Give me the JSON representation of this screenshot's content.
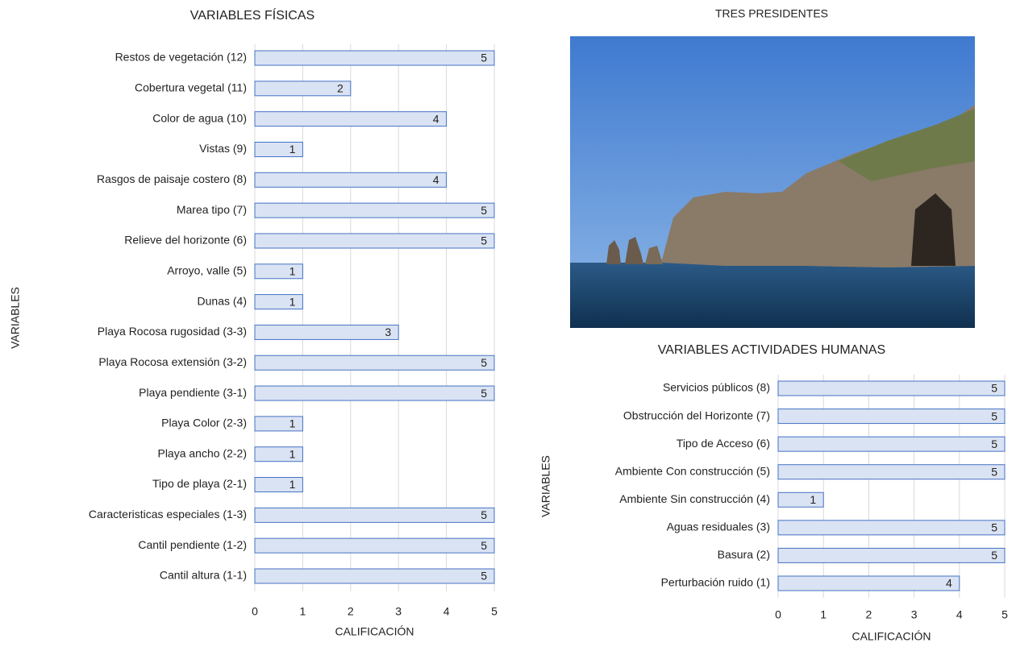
{
  "chart_data": [
    {
      "type": "bar",
      "orientation": "horizontal",
      "title": "VARIABLES FÍSICAS",
      "xlabel": "CALIFICACIÓN",
      "ylabel": "VARIABLES",
      "categories": [
        "Restos de vegetación (12)",
        "Cobertura vegetal (11)",
        "Color de agua (10)",
        "Vistas (9)",
        "Rasgos de paisaje costero (8)",
        "Marea tipo (7)",
        "Relieve del horizonte (6)",
        "Arroyo, valle (5)",
        "Dunas (4)",
        "Playa Rocosa rugosidad (3-3)",
        "Playa Rocosa extensión (3-2)",
        "Playa pendiente (3-1)",
        "Playa Color (2-3)",
        "Playa ancho (2-2)",
        "Tipo de playa (2-1)",
        "Caracteristicas especiales (1-3)",
        "Cantil pendiente (1-2)",
        "Cantil altura (1-1)"
      ],
      "values": [
        5,
        2,
        4,
        1,
        4,
        5,
        5,
        1,
        1,
        3,
        5,
        5,
        1,
        1,
        1,
        5,
        5,
        5
      ],
      "color": "#dae3f3",
      "edge_color": "#4472c4",
      "xlim": [
        0,
        5
      ],
      "xticks": [
        0,
        1,
        2,
        3,
        4,
        5
      ],
      "grid": true
    },
    {
      "type": "bar",
      "orientation": "horizontal",
      "title": "VARIABLES ACTIVIDADES HUMANAS",
      "xlabel": "CALIFICACIÓN",
      "ylabel": "VARIABLES",
      "categories": [
        "Servicios públicos (8)",
        "Obstrucción del Horizonte (7)",
        "Tipo de Acceso (6)",
        "Ambiente Con construcción (5)",
        "Ambiente Sin construcción (4)",
        "Aguas residuales (3)",
        "Basura (2)",
        "Perturbación ruido (1)"
      ],
      "values": [
        5,
        5,
        5,
        5,
        1,
        5,
        5,
        4
      ],
      "color": "#dae3f3",
      "edge_color": "#4472c4",
      "xlim": [
        0,
        5
      ],
      "xticks": [
        0,
        1,
        2,
        3,
        4,
        5
      ],
      "grid": true
    }
  ],
  "photo": {
    "title": "TRES PRESIDENTES"
  }
}
